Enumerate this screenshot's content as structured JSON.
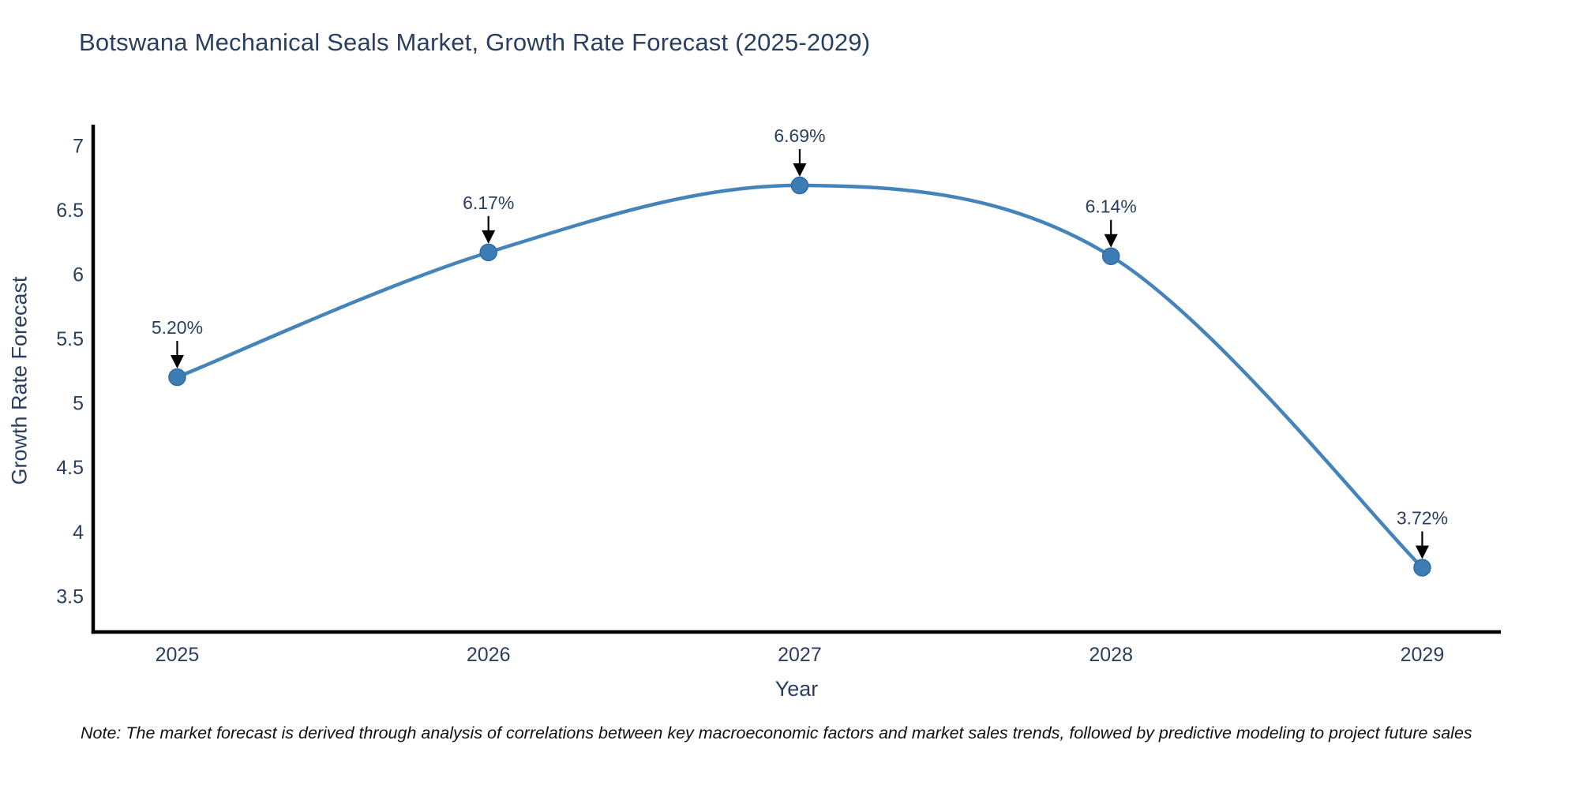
{
  "chart_data": {
    "type": "line",
    "title": "Botswana Mechanical Seals Market, Growth Rate Forecast (2025-2029)",
    "xlabel": "Year",
    "ylabel": "Growth Rate Forecast",
    "x": [
      2025,
      2026,
      2027,
      2028,
      2029
    ],
    "values": [
      5.2,
      6.17,
      6.69,
      6.14,
      3.72
    ],
    "point_labels": [
      "5.20%",
      "6.17%",
      "6.69%",
      "6.14%",
      "3.72%"
    ],
    "x_tick_labels": [
      "2025",
      "2026",
      "2027",
      "2028",
      "2029"
    ],
    "y_ticks": [
      3.5,
      4,
      4.5,
      5,
      5.5,
      6,
      6.5,
      7
    ],
    "y_tick_labels": [
      "3.5",
      "4",
      "4.5",
      "5",
      "5.5",
      "6",
      "6.5",
      "7"
    ],
    "xlim": [
      2024.73,
      2029.25
    ],
    "ylim": [
      3.22,
      7.15
    ],
    "grid": false,
    "legend_position": "none",
    "line_shape": "spline",
    "colors": {
      "line": "#4484ba",
      "marker": "#3d7db6",
      "marker_edge": "#2f6ba3",
      "annotation_arrow": "#000000",
      "annotation_text": "#2a3f5f",
      "tick_text": "#2a3f5f",
      "axis_line": "#000000",
      "title_text": "#2a3f5f"
    }
  },
  "note": "Note: The market forecast is derived through analysis of correlations between key macroeconomic factors and market sales trends, followed by predictive modeling to project future sales"
}
